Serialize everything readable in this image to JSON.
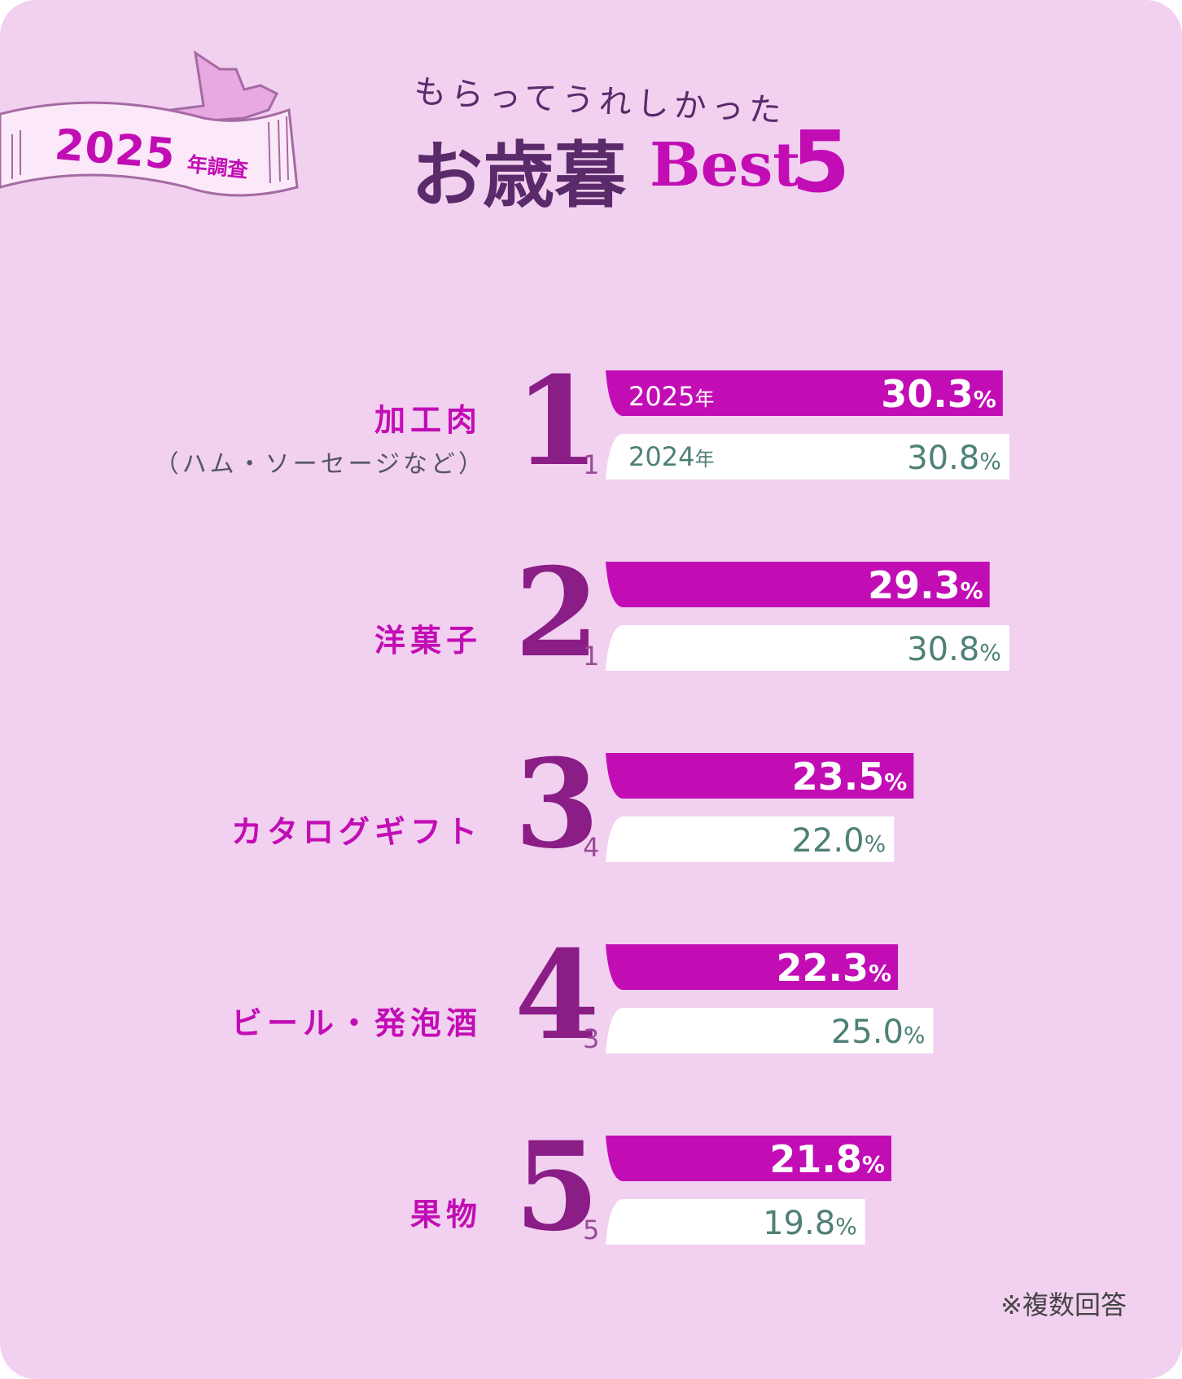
{
  "header": {
    "badge_year": "2025",
    "badge_suffix": "年調査",
    "subtitle": "もらってうれしかった",
    "title_jp": "お歳暮",
    "title_best": "Best",
    "title_five": "5"
  },
  "legend": {
    "current": "2025",
    "previous": "2024",
    "year_suffix": "年"
  },
  "colors": {
    "current_bar": "#c20db5",
    "previous_bar": "#ffffff",
    "previous_text": "#4e8077",
    "background": "#f1d1ef"
  },
  "percent_sign": "%",
  "chart_data": {
    "type": "bar",
    "orientation": "horizontal",
    "categories": [
      "加工肉",
      "洋菓子",
      "カタログギフト",
      "ビール・発泡酒",
      "果物"
    ],
    "category_notes": [
      "（ハム・ソーセージなど）",
      "",
      "",
      "",
      ""
    ],
    "ranks_2025": [
      "1",
      "2",
      "3",
      "4",
      "5"
    ],
    "ranks_2024": [
      "1",
      "1",
      "4",
      "3",
      "5"
    ],
    "series": [
      {
        "name": "2025年",
        "values": [
          30.3,
          29.3,
          23.5,
          22.3,
          21.8
        ]
      },
      {
        "name": "2024年",
        "values": [
          30.8,
          30.8,
          22.0,
          25.0,
          19.8
        ]
      }
    ],
    "value_labels_2025": [
      "30.3",
      "29.3",
      "23.5",
      "22.3",
      "21.8"
    ],
    "value_labels_2024": [
      "30.8",
      "30.8",
      "22.0",
      "25.0",
      "19.8"
    ],
    "unit": "%"
  },
  "footnote": "※複数回答"
}
